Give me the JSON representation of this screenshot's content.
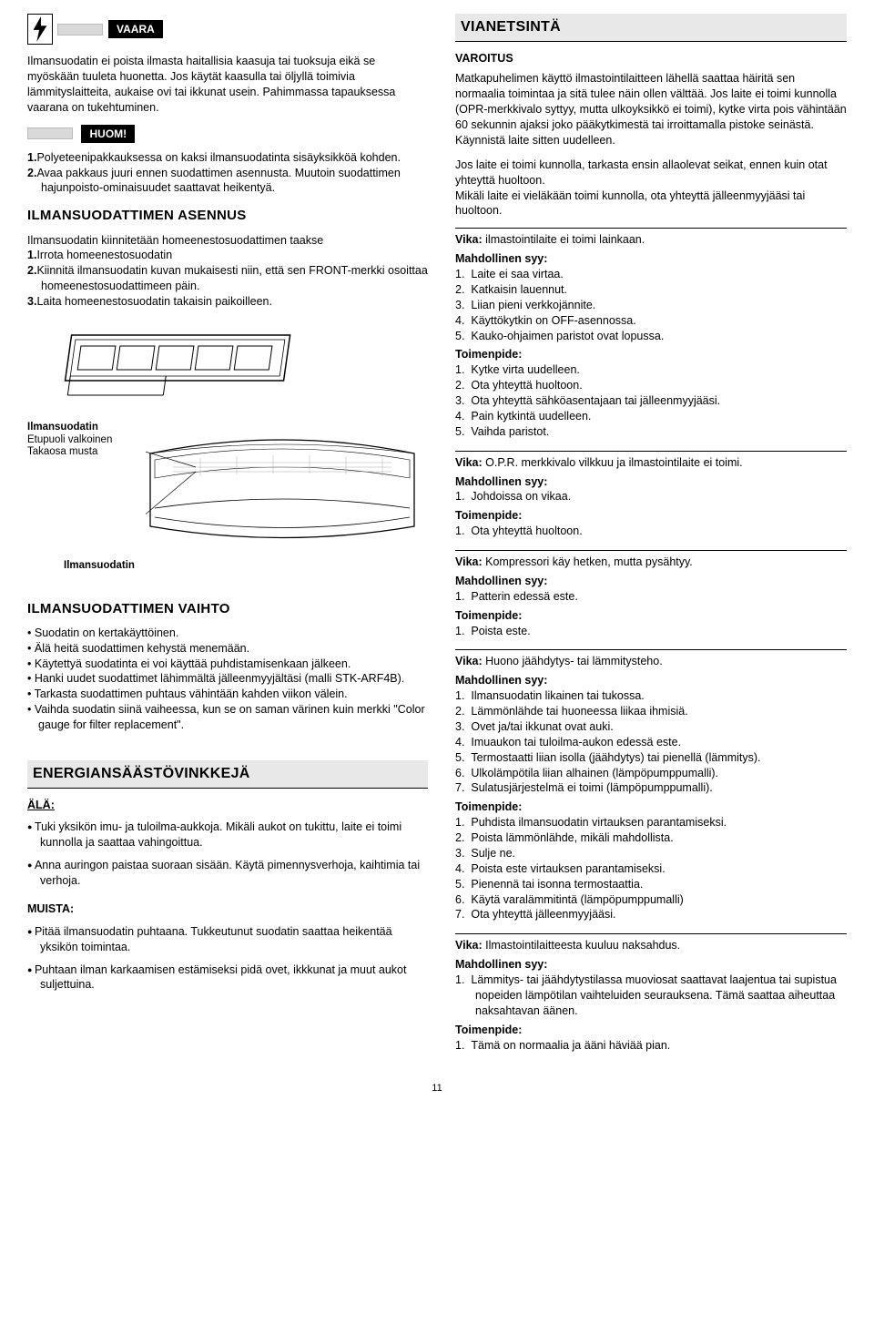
{
  "left": {
    "danger_label": "VAARA",
    "danger_text": "Ilmansuodatin ei poista ilmasta haitallisia kaasuja tai tuoksuja eikä se myöskään tuuleta huonetta. Jos käytät kaasulla tai öljyllä toimivia lämmityslaitteita, aukaise ovi tai ikkunat usein. Pahimmassa tapauksessa vaarana on tukehtuminen.",
    "huom_label": "HUOM!",
    "huom_items": [
      {
        "n": "1.",
        "t": "Polyeteenipakkauksessa on kaksi ilmansuodatinta sisäyksikköä kohden."
      },
      {
        "n": "2.",
        "t": "Avaa pakkaus juuri ennen suodattimen asennusta. Muutoin suodattimen hajunpoisto-ominaisuudet saattavat heikentyä."
      }
    ],
    "asennus_heading": "ILMANSUODATTIMEN ASENNUS",
    "asennus_intro": "Ilmansuodatin kiinnitetään homeenestosuodattimen taakse",
    "asennus_items": [
      {
        "n": "1.",
        "t": "Irrota homeenestosuodatin"
      },
      {
        "n": "2.",
        "t": "Kiinnitä ilmansuodatin kuvan mukaisesti niin, että sen FRONT-merkki osoittaa homeenestosuodattimeen päin."
      },
      {
        "n": "3.",
        "t": "Laita homeenestosuodatin takaisin paikoilleen."
      }
    ],
    "fig_label_title": "Ilmansuodatin",
    "fig_label_line1": "Etupuoli valkoinen",
    "fig_label_line2": "Takaosa musta",
    "fig_label2": "Ilmansuodatin",
    "vaihto_heading": "ILMANSUODATTIMEN VAIHTO",
    "vaihto_items": [
      "Suodatin on kertakäyttöinen.",
      "Älä heitä suodattimen kehystä menemään.",
      "Käytettyä suodatinta ei voi käyttää puhdistamisenkaan jälkeen.",
      "Hanki uudet suodattimet lähimmältä jälleenmyyjältäsi (malli STK-ARF4B).",
      "Tarkasta suodattimen puhtaus vähintään kahden viikon välein.",
      "Vaihda suodatin siinä vaiheessa, kun se on saman värinen kuin merkki \"Color gauge for filter replacement\"."
    ],
    "energia_heading": "ENERGIANSÄÄSTÖVINKKEJÄ",
    "ala_label": "ÄLÄ:",
    "ala_items": [
      "Tuki yksikön imu- ja tuloilma-aukkoja. Mikäli aukot on tukittu, laite ei toimi kunnolla ja saattaa vahingoittua.",
      "Anna auringon paistaa suoraan sisään. Käytä pimennysverhoja, kaihtimia tai verhoja."
    ],
    "muista_label": "MUISTA:",
    "muista_items": [
      "Pitää ilmansuodatin puhtaana. Tukkeutunut suodatin saattaa heikentää yksikön toimintaa.",
      "Puhtaan ilman karkaamisen estämiseksi pidä ovet, ikkkunat ja muut aukot suljettuina."
    ]
  },
  "right": {
    "vian_heading": "VIANETSINTÄ",
    "varoitus_label": "VAROITUS",
    "varoitus_text": "Matkapuhelimen käyttö ilmastointilaitteen lähellä saattaa häiritä sen normaalia toimintaa ja sitä tulee näin ollen välttää. Jos laite ei toimi kunnolla (OPR-merkkivalo syttyy, mutta ulkoyksikkö ei toimi), kytke virta pois vähintään 60 sekunnin ajaksi joko pääkytkimestä tai irroittamalla pistoke seinästä. Käynnistä laite sitten uudelleen.",
    "intro_text": "Jos laite ei toimi kunnolla, tarkasta ensin allaolevat seikat, ennen kuin otat yhteyttä huoltoon.\nMikäli laite ei vieläkään toimi kunnolla, ota yhteyttä jälleenmyyjääsi tai huoltoon.",
    "vika_label": "Vika:",
    "syy_label": "Mahdollinen syy:",
    "toimenpide_label": "Toimenpide:",
    "blocks": [
      {
        "vika": "ilmastointilaite ei toimi lainkaan.",
        "syy": [
          "Laite ei saa virtaa.",
          "Katkaisin lauennut.",
          "Liian pieni verkkojännite.",
          "Käyttökytkin on OFF-asennossa.",
          "Kauko-ohjaimen paristot ovat lopussa."
        ],
        "toimenpide": [
          "Kytke virta uudelleen.",
          "Ota yhteyttä huoltoon.",
          "Ota yhteyttä sähköasentajaan tai jälleenmyyjääsi.",
          "Pain kytkintä uudelleen.",
          "Vaihda paristot."
        ]
      },
      {
        "vika": "O.P.R. merkkivalo vilkkuu ja ilmastointilaite ei toimi.",
        "syy": [
          "Johdoissa on vikaa."
        ],
        "toimenpide": [
          "Ota yhteyttä huoltoon."
        ]
      },
      {
        "vika": "Kompressori käy hetken, mutta pysähtyy.",
        "syy": [
          "Patterin edessä este."
        ],
        "toimenpide": [
          "Poista este."
        ]
      },
      {
        "vika": "Huono jäähdytys- tai lämmitysteho.",
        "syy": [
          "Ilmansuodatin likainen tai tukossa.",
          "Lämmönlähde tai huoneessa liikaa ihmisiä.",
          "Ovet ja/tai ikkunat ovat auki.",
          "Imuaukon tai tuloilma-aukon edessä este.",
          "Termostaatti liian isolla (jäähdytys) tai pienellä (lämmitys).",
          "Ulkolämpötila liian alhainen (lämpöpumppumalli).",
          "Sulatusjärjestelmä ei toimi (lämpöpumppumalli)."
        ],
        "toimenpide": [
          "Puhdista ilmansuodatin virtauksen parantamiseksi.",
          "Poista lämmönlähde, mikäli mahdollista.",
          "Sulje ne.",
          "Poista este virtauksen parantamiseksi.",
          "Pienennä tai isonna termostaattia.",
          "Käytä varalämmitintä (lämpöpumppumalli)",
          "Ota yhteyttä jälleenmyyjääsi."
        ]
      },
      {
        "vika": "Ilmastointilaitteesta kuuluu naksahdus.",
        "syy": [
          "Lämmitys- tai jäähdytystilassa muoviosat saattavat laajentua tai supistua nopeiden lämpötilan vaihteluiden seurauksena. Tämä saattaa aiheuttaa naksahtavan äänen."
        ],
        "toimenpide": [
          "Tämä on normaalia ja ääni häviää pian."
        ]
      }
    ]
  },
  "page_number": "11"
}
